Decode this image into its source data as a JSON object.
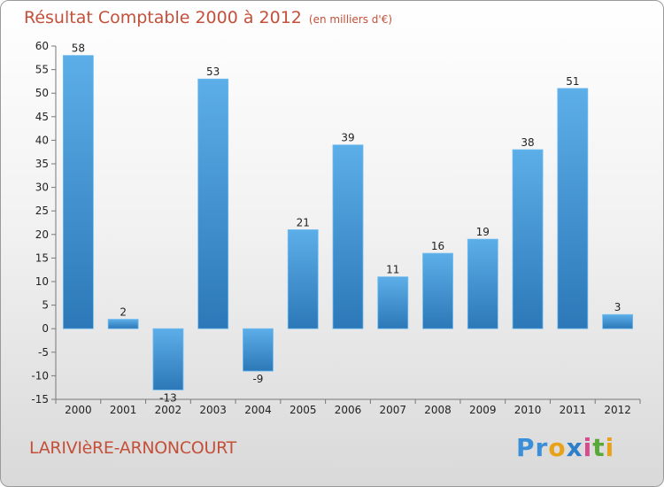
{
  "title": "Résultat Comptable 2000 à 2012",
  "subtitle": "(en milliers d'€)",
  "place": "LARIVIèRE-ARNONCOURT",
  "logo": {
    "letters": [
      "P",
      "r",
      "o",
      "x",
      "i",
      "t",
      "i"
    ]
  },
  "colors": {
    "bar": "#3a94dc",
    "bar_light": "#5caee8",
    "bar_dark": "#2c78b8",
    "title": "#c4503a"
  },
  "chart_data": {
    "type": "bar",
    "categories": [
      "2000",
      "2001",
      "2002",
      "2003",
      "2004",
      "2005",
      "2006",
      "2007",
      "2008",
      "2009",
      "2010",
      "2011",
      "2012"
    ],
    "values": [
      58,
      2,
      -13,
      53,
      -9,
      21,
      39,
      11,
      16,
      19,
      38,
      51,
      3
    ],
    "ylim": [
      -15,
      60
    ],
    "yticks": [
      60,
      55,
      50,
      45,
      40,
      35,
      30,
      25,
      20,
      15,
      10,
      5,
      0,
      -5,
      -10,
      -15
    ],
    "grid": false,
    "xlabel": "",
    "ylabel": ""
  }
}
